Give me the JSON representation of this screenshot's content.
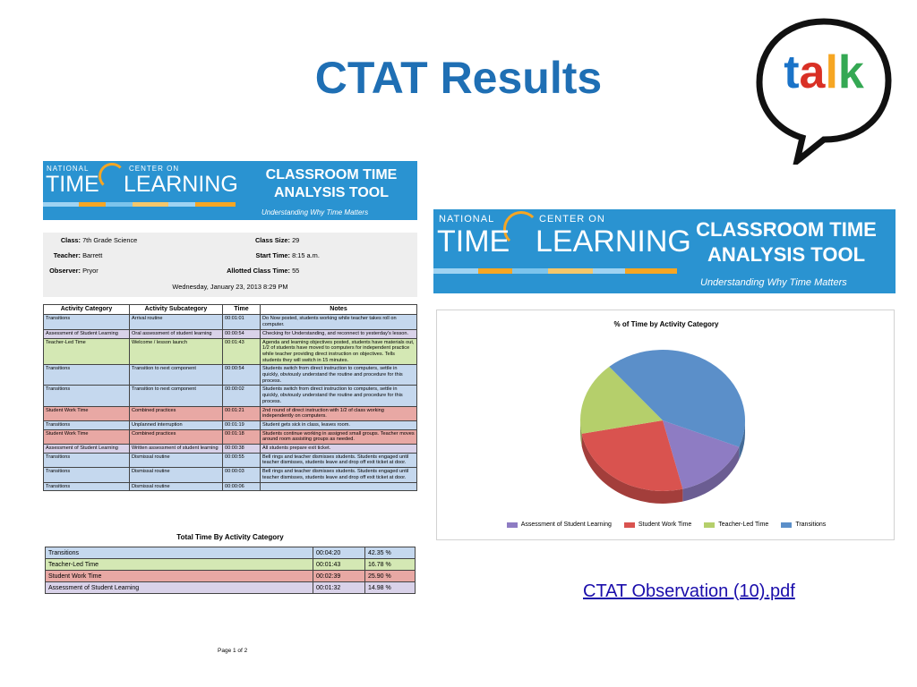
{
  "slide": {
    "title": "CTAT Results",
    "link_text": "CTAT Observation (10).pdf"
  },
  "logo": {
    "letters": [
      "t",
      "a",
      "l",
      "k"
    ],
    "colors": [
      "#1a73c8",
      "#d93025",
      "#f6a623",
      "#34a853"
    ]
  },
  "banner": {
    "national": "NATIONAL",
    "center_on": "CENTER ON",
    "time": "TIME",
    "learning": "LEARNING",
    "tool_line1": "CLASSROOM TIME",
    "tool_line2": "ANALYSIS TOOL",
    "subtitle": "Understanding Why Time Matters",
    "bg_color": "#2a93d1"
  },
  "document": {
    "info": {
      "class_label": "Class:",
      "class_value": "7th Grade Science",
      "teacher_label": "Teacher:",
      "teacher_value": "Barrett",
      "observer_label": "Observer:",
      "observer_value": "Pryor",
      "class_size_label": "Class Size:",
      "class_size_value": "29",
      "start_time_label": "Start Time:",
      "start_time_value": "8:15 a.m.",
      "allotted_label": "Allotted Class Time:",
      "allotted_value": "55",
      "date": "Wednesday, January 23, 2013 8:29 PM"
    },
    "headers": [
      "Activity Category",
      "Activity Subcategory",
      "Time",
      "Notes"
    ],
    "rows": [
      {
        "cat": "Transitions",
        "sub": "Arrival routine",
        "time": "00:01:01",
        "notes": "Do Now posted, students working while teacher takes roll on computer.",
        "color": "c-trans"
      },
      {
        "cat": "Assessment of Student Learning",
        "sub": "Oral assessment of student learning",
        "time": "00:00:54",
        "notes": "Checking for Understanding, and reconnect to yesterday's lesson.",
        "color": "c-assess"
      },
      {
        "cat": "Teacher-Led Time",
        "sub": "Welcome / lesson launch",
        "time": "00:01:43",
        "notes": "Agenda and learning objectives posted, students have materials out, 1/2 of students have moved to computers for independent practice while teacher providing direct instruction on objectives. Tells students they will switch in 15 minutes.",
        "color": "c-teach"
      },
      {
        "cat": "Transitions",
        "sub": "Transition to next component",
        "time": "00:00:54",
        "notes": "Students switch from direct instruction to computers, settle in quickly, obviously understand the routine and procedure for this process.",
        "color": "c-trans"
      },
      {
        "cat": "Transitions",
        "sub": "Transition to next component",
        "time": "00:00:02",
        "notes": "Students switch from direct instruction to computers, settle in quickly, obviously understand the routine and procedure for this process.",
        "color": "c-trans"
      },
      {
        "cat": "Student Work Time",
        "sub": "Combined practices",
        "time": "00:01:21",
        "notes": "2nd round of direct instruction with 1/2 of class working independently on computers.",
        "color": "c-work"
      },
      {
        "cat": "Transitions",
        "sub": "Unplanned interruption",
        "time": "00:01:19",
        "notes": "Student gets sick in class, leaves room.",
        "color": "c-trans"
      },
      {
        "cat": "Student Work Time",
        "sub": "Combined practices",
        "time": "00:01:18",
        "notes": "Students continue working in assigned small groups. Teacher moves around room assisting groups as needed.",
        "color": "c-work"
      },
      {
        "cat": "Assessment of Student Learning",
        "sub": "Written assessment of student learning",
        "time": "00:00:38",
        "notes": "All students prepare exit ticket.",
        "color": "c-assess"
      },
      {
        "cat": "Transitions",
        "sub": "Dismissal routine",
        "time": "00:00:55",
        "notes": "Bell rings and teacher dismisses students. Students engaged until teacher dismisses, students leave and drop off exit ticket at door.",
        "color": "c-trans"
      },
      {
        "cat": "Transitions",
        "sub": "Dismissal routine",
        "time": "00:00:03",
        "notes": "Bell rings and teacher dismisses students. Students engaged until teacher dismisses, students leave and drop off exit ticket at door.",
        "color": "c-trans"
      },
      {
        "cat": "Transitions",
        "sub": "Dismissal routine",
        "time": "00:00:06",
        "notes": "",
        "color": "c-trans"
      }
    ],
    "total_title": "Total Time By Activity Category",
    "totals": [
      {
        "cat": "Transitions",
        "time": "00:04:20",
        "pct": "42.35 %",
        "color": "c-trans"
      },
      {
        "cat": "Teacher-Led Time",
        "time": "00:01:43",
        "pct": "16.78 %",
        "color": "c-teach"
      },
      {
        "cat": "Student Work Time",
        "time": "00:02:39",
        "pct": "25.90 %",
        "color": "c-work"
      },
      {
        "cat": "Assessment of Student Learning",
        "time": "00:01:32",
        "pct": "14.98 %",
        "color": "c-assess"
      }
    ],
    "page_label": "Page 1 of 2"
  },
  "chart_data": {
    "type": "pie",
    "title": "% of Time by Activity Category",
    "series": [
      {
        "name": "Assessment of Student Learning",
        "value": 14.98,
        "color": "#8e7cc3"
      },
      {
        "name": "Student Work Time",
        "value": 25.9,
        "color": "#d9534f"
      },
      {
        "name": "Teacher-Led Time",
        "value": 16.78,
        "color": "#b5cf6b"
      },
      {
        "name": "Transitions",
        "value": 42.35,
        "color": "#5b8fc9"
      }
    ],
    "legend_position": "bottom"
  }
}
